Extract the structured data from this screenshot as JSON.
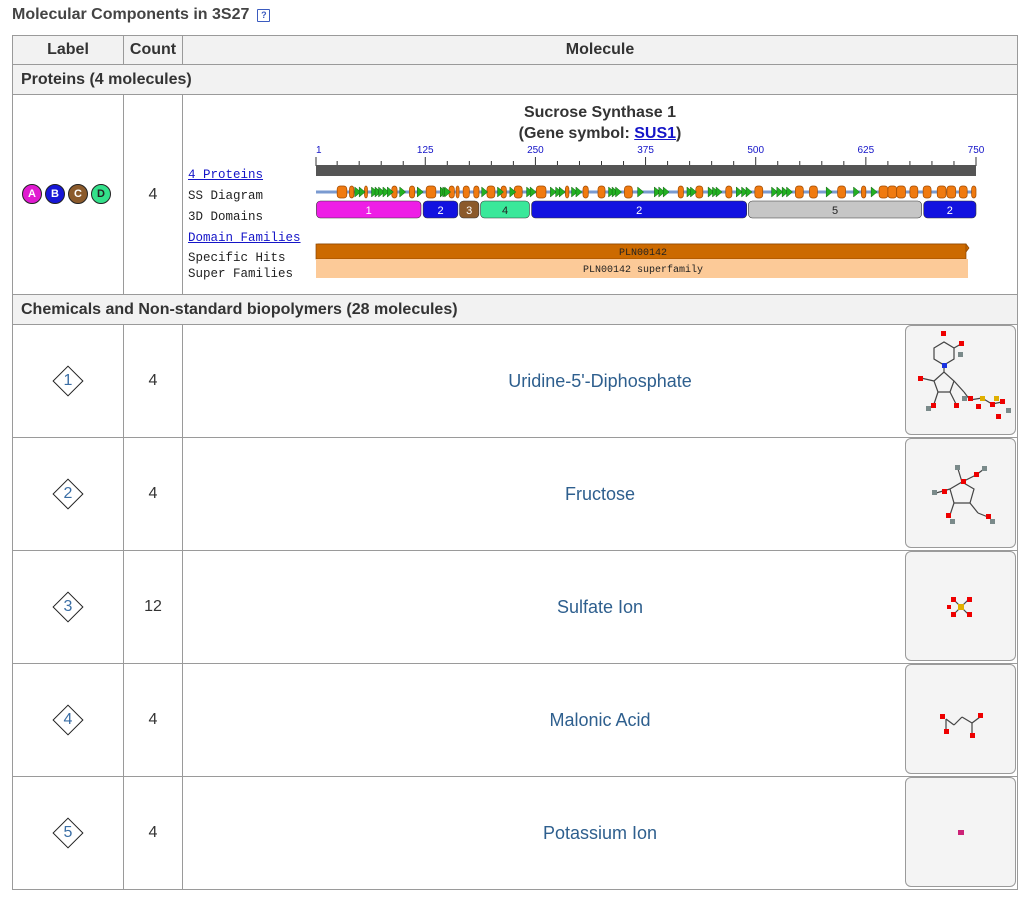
{
  "page": {
    "title": "Molecular Components in 3S27",
    "help_icon": "?"
  },
  "table": {
    "headers": {
      "label": "Label",
      "count": "Count",
      "molecule": "Molecule"
    }
  },
  "proteins_section": {
    "title": "Proteins (4 molecules)",
    "chains": [
      {
        "id": "A",
        "color": "#e01ad0"
      },
      {
        "id": "B",
        "color": "#1616d6"
      },
      {
        "id": "C",
        "color": "#8b5a2b"
      },
      {
        "id": "D",
        "color": "#33e08a"
      }
    ],
    "count": "4",
    "protein_name": "Sucrose Synthase 1",
    "gene_prefix": "(Gene symbol: ",
    "gene_symbol": "SUS1",
    "gene_suffix": ")",
    "labels": {
      "proteins_link": "4 Proteins",
      "ss_diagram": "SS Diagram",
      "domains_3d": "3D Domains",
      "domain_families": "Domain Families",
      "specific_hits": "Specific Hits",
      "super_families": "Super Families"
    },
    "ruler_ticks": [
      "1",
      "125",
      "250",
      "375",
      "500",
      "625",
      "750"
    ],
    "domains": [
      {
        "label": "1",
        "color": "#ee1ee6",
        "text_color": "#ffffff"
      },
      {
        "label": "2",
        "color": "#1212e0",
        "text_color": "#ffffff"
      },
      {
        "label": "3",
        "color": "#8b5a2b",
        "text_color": "#ffffff"
      },
      {
        "label": "4",
        "color": "#3ae89a",
        "text_color": "#222222"
      },
      {
        "label": "2",
        "color": "#1212e0",
        "text_color": "#ffffff"
      },
      {
        "label": "5",
        "color": "#c6c6c6",
        "text_color": "#222222"
      },
      {
        "label": "2",
        "color": "#1212e0",
        "text_color": "#ffffff"
      }
    ],
    "specific_hit": {
      "label": "PLN00142",
      "color": "#cc6a00"
    },
    "super_family": {
      "label": "PLN00142 superfamily",
      "color": "#fcca98"
    }
  },
  "chemicals_section": {
    "title": "Chemicals and Non-standard biopolymers (28 molecules)",
    "items": [
      {
        "label": "1",
        "count": "4",
        "name": "Uridine-5'-Diphosphate"
      },
      {
        "label": "2",
        "count": "4",
        "name": "Fructose"
      },
      {
        "label": "3",
        "count": "12",
        "name": "Sulfate Ion"
      },
      {
        "label": "4",
        "count": "4",
        "name": "Malonic Acid"
      },
      {
        "label": "5",
        "count": "4",
        "name": "Potassium Ion"
      }
    ]
  }
}
